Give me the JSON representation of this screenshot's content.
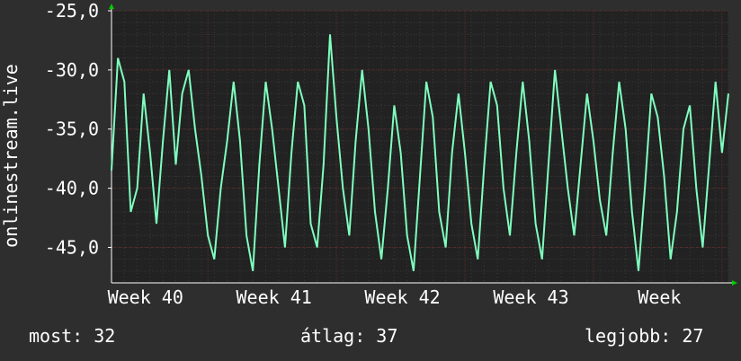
{
  "colors": {
    "background": "#2e2e2e",
    "plot_background": "#222222",
    "line": "#7fffbf",
    "axis": "#ffffff",
    "grid_minor": "#3a3a3a",
    "grid_major": "#5a2a2a",
    "arrow": "#00cc00"
  },
  "footer": {
    "now_label": "most:",
    "now_value": "32",
    "avg_label": "átlag:",
    "avg_value": "37",
    "best_label": "legjobb:",
    "best_value": "27"
  },
  "chart_data": {
    "type": "line",
    "title": "",
    "ylabel": "onlinestream.live",
    "xlabel": "",
    "ylim": [
      -48,
      -25
    ],
    "xlim": [
      0,
      96
    ],
    "ytick_values": [
      -25,
      -30,
      -35,
      -40,
      -45
    ],
    "ytick_labels": [
      "-25,0",
      "-30,0",
      "-35,0",
      "-40,0",
      "-45,0"
    ],
    "xtick_values": [
      5,
      25,
      45,
      65,
      85
    ],
    "xtick_labels": [
      "Week 40",
      "Week 41",
      "Week 42",
      "Week 43",
      "Week"
    ],
    "grid": true,
    "series": [
      {
        "x": [
          0,
          1,
          2,
          3,
          4,
          5,
          6,
          7,
          8,
          9,
          10,
          11,
          12,
          13,
          14,
          15,
          16,
          17,
          18,
          19,
          20,
          21,
          22,
          23,
          24,
          25,
          26,
          27,
          28,
          29,
          30,
          31,
          32,
          33,
          34,
          35,
          36,
          37,
          38,
          39,
          40,
          41,
          42,
          43,
          44,
          45,
          46,
          47,
          48,
          49,
          50,
          51,
          52,
          53,
          54,
          55,
          56,
          57,
          58,
          59,
          60,
          61,
          62,
          63,
          64,
          65,
          66,
          67,
          68,
          69,
          70,
          71,
          72,
          73,
          74,
          75,
          76,
          77,
          78,
          79,
          80,
          81,
          82,
          83,
          84,
          85,
          86,
          87,
          88,
          89,
          90,
          91,
          92,
          93,
          94,
          95,
          96
        ],
        "values": [
          -38.5,
          -29,
          -31,
          -42,
          -40,
          -32,
          -37,
          -43,
          -36,
          -30,
          -38,
          -32,
          -30,
          -35,
          -39,
          -44,
          -46,
          -40,
          -36,
          -31,
          -36,
          -44,
          -47,
          -38,
          -31,
          -35,
          -40,
          -45,
          -37,
          -31,
          -33,
          -43,
          -45,
          -38,
          -27,
          -34,
          -40,
          -44,
          -36,
          -30,
          -35,
          -42,
          -46,
          -40,
          -33,
          -37,
          -44,
          -47,
          -39,
          -31,
          -34,
          -42,
          -45,
          -37,
          -32,
          -37,
          -43,
          -46,
          -38,
          -31,
          -33,
          -40,
          -44,
          -37,
          -31,
          -36,
          -43,
          -46,
          -38,
          -30,
          -35,
          -40,
          -44,
          -38,
          -32,
          -36,
          -41,
          -44,
          -37,
          -31,
          -35,
          -42,
          -47,
          -40,
          -32,
          -34,
          -39,
          -46,
          -42,
          -35,
          -33,
          -40,
          -45,
          -38,
          -31,
          -37,
          -32
        ]
      }
    ]
  }
}
